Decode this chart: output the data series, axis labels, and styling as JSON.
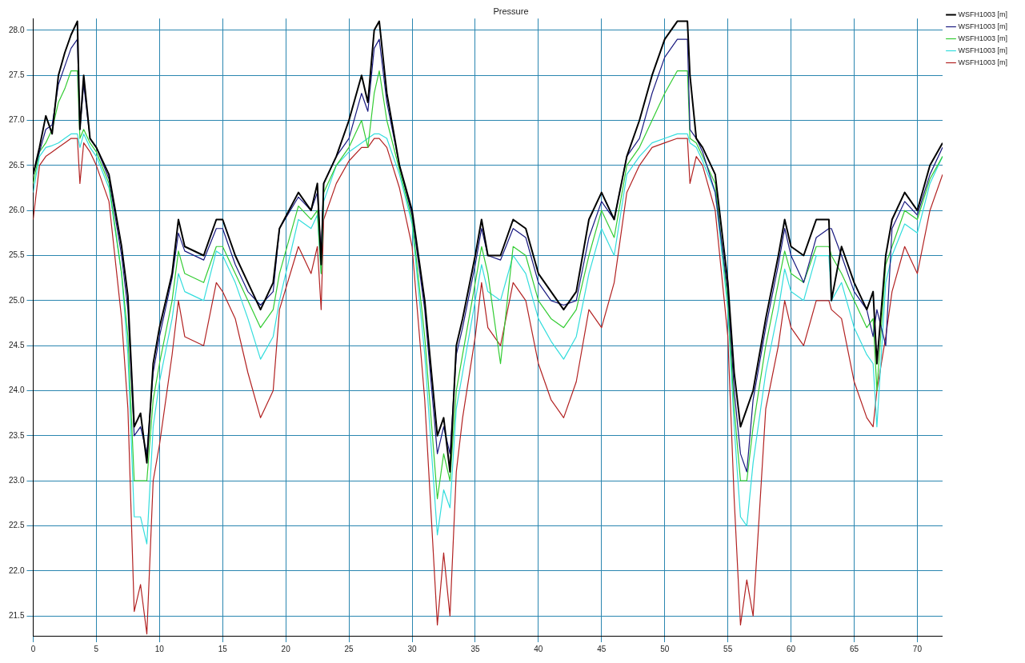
{
  "chart_data": {
    "type": "line",
    "title": "Pressure",
    "xlim": [
      0,
      72
    ],
    "ylim": [
      21.28,
      28.13
    ],
    "xticks": [
      0,
      5,
      10,
      15,
      20,
      25,
      30,
      35,
      40,
      45,
      50,
      55,
      60,
      65,
      70
    ],
    "yticks": [
      21.5,
      {
        "value": 22,
        "label": "22.0"
      },
      22.5,
      {
        "value": 23,
        "label": "23.0"
      },
      23.5,
      {
        "value": 24,
        "label": "24.0"
      },
      24.5,
      {
        "value": 25,
        "label": "25.0"
      },
      25.5,
      {
        "value": 26,
        "label": "26.0"
      },
      26.5,
      {
        "value": 27,
        "label": "27.0"
      },
      27.5,
      {
        "value": 28,
        "label": "28.0"
      }
    ],
    "grid": true,
    "legend": "top right",
    "x": [
      0,
      0.5,
      1,
      1.5,
      2,
      2.5,
      3,
      3.5,
      3.7,
      4,
      4.5,
      5,
      6,
      7,
      7.5,
      8,
      8.5,
      9,
      9.5,
      10,
      11,
      11.5,
      12,
      13.5,
      14.5,
      15,
      16,
      17,
      18,
      19,
      19.5,
      21,
      22,
      22.5,
      22.8,
      23,
      24,
      25,
      26,
      26.5,
      27,
      27.4,
      28,
      29,
      30,
      31,
      32,
      32.5,
      33,
      33.5,
      34,
      35,
      35.5,
      36,
      37,
      38,
      39,
      40,
      41,
      42,
      43,
      44,
      45,
      46,
      47,
      48,
      49,
      50,
      51,
      51.8,
      52,
      52.5,
      53,
      54,
      55,
      55.5,
      56,
      56.5,
      57,
      58,
      59,
      59.5,
      60,
      61,
      62,
      63,
      63.2,
      64,
      65,
      66,
      66.5,
      66.8,
      67.5,
      68,
      69,
      70,
      71,
      72
    ],
    "series": [
      {
        "name": "WSFH1003 [m]",
        "color": "#000000",
        "values": [
          26.4,
          26.7,
          27.05,
          26.85,
          27.5,
          27.75,
          27.95,
          28.1,
          26.9,
          27.5,
          26.8,
          26.7,
          26.4,
          25.6,
          25.05,
          23.6,
          23.75,
          23.2,
          24.3,
          24.7,
          25.3,
          25.9,
          25.6,
          25.5,
          25.9,
          25.9,
          25.5,
          25.2,
          24.9,
          25.2,
          25.8,
          26.2,
          26.0,
          26.3,
          25.4,
          26.3,
          26.6,
          27.0,
          27.5,
          27.2,
          28.0,
          28.1,
          27.3,
          26.5,
          26.0,
          25.0,
          23.5,
          23.7,
          23.1,
          24.5,
          24.8,
          25.5,
          25.9,
          25.5,
          25.5,
          25.9,
          25.8,
          25.3,
          25.1,
          24.9,
          25.1,
          25.9,
          26.2,
          25.9,
          26.6,
          27.0,
          27.5,
          27.9,
          28.1,
          28.1,
          27.5,
          26.8,
          26.7,
          26.4,
          25.2,
          24.2,
          23.6,
          23.8,
          24.0,
          24.8,
          25.5,
          25.9,
          25.6,
          25.5,
          25.9,
          25.9,
          25.0,
          25.6,
          25.2,
          24.9,
          25.1,
          24.3,
          25.5,
          25.9,
          26.2,
          26.0,
          26.5,
          26.75
        ]
      },
      {
        "name": "WSFH1003 [m]",
        "color": "#1a1a80",
        "values": [
          26.4,
          26.65,
          26.9,
          26.95,
          27.4,
          27.6,
          27.8,
          27.9,
          26.9,
          27.4,
          26.8,
          26.7,
          26.35,
          25.5,
          24.9,
          23.5,
          23.6,
          23.3,
          24.2,
          24.6,
          25.25,
          25.75,
          25.55,
          25.45,
          25.8,
          25.8,
          25.4,
          25.1,
          24.95,
          25.1,
          25.8,
          26.15,
          26.0,
          26.2,
          25.5,
          26.3,
          26.6,
          26.8,
          27.3,
          27.1,
          27.8,
          27.9,
          27.2,
          26.5,
          25.95,
          24.9,
          23.3,
          23.6,
          23.3,
          24.4,
          24.7,
          25.4,
          25.8,
          25.5,
          25.45,
          25.8,
          25.7,
          25.2,
          25.0,
          24.95,
          25.0,
          25.7,
          26.1,
          25.9,
          26.6,
          26.8,
          27.3,
          27.7,
          27.9,
          27.9,
          26.9,
          26.8,
          26.65,
          26.2,
          25.1,
          24.0,
          23.3,
          23.1,
          23.9,
          24.7,
          25.4,
          25.8,
          25.5,
          25.2,
          25.7,
          25.8,
          25.8,
          25.5,
          25.1,
          24.9,
          24.6,
          24.9,
          24.5,
          25.8,
          26.1,
          25.95,
          26.4,
          26.7
        ]
      },
      {
        "name": "WSFH1003 [m]",
        "color": "#33cc33",
        "values": [
          26.3,
          26.65,
          26.75,
          26.9,
          27.2,
          27.35,
          27.55,
          27.55,
          26.8,
          26.9,
          26.75,
          26.65,
          26.3,
          25.3,
          24.6,
          23.0,
          23.0,
          23.0,
          23.9,
          24.3,
          25.0,
          25.55,
          25.3,
          25.2,
          25.6,
          25.6,
          25.3,
          25.0,
          24.7,
          24.9,
          25.3,
          26.05,
          25.9,
          26.0,
          25.3,
          26.2,
          26.5,
          26.7,
          27.0,
          26.7,
          27.3,
          27.55,
          27.0,
          26.45,
          25.9,
          24.6,
          22.8,
          23.3,
          23.0,
          24.0,
          24.4,
          25.2,
          25.6,
          25.3,
          24.3,
          25.6,
          25.5,
          25.0,
          24.8,
          24.7,
          24.9,
          25.5,
          26.0,
          25.7,
          26.5,
          26.7,
          27.0,
          27.3,
          27.55,
          27.55,
          26.8,
          26.75,
          26.6,
          26.3,
          25.0,
          23.8,
          23.0,
          23.0,
          23.6,
          24.5,
          25.2,
          25.55,
          25.3,
          25.2,
          25.6,
          25.6,
          25.5,
          25.3,
          25.0,
          24.7,
          24.8,
          24.0,
          25.4,
          25.6,
          26.0,
          25.9,
          26.35,
          26.6
        ]
      },
      {
        "name": "WSFH1003 [m]",
        "color": "#33dddd",
        "values": [
          26.2,
          26.6,
          26.7,
          26.72,
          26.75,
          26.8,
          26.85,
          26.85,
          26.7,
          26.85,
          26.7,
          26.6,
          26.25,
          25.3,
          24.4,
          22.6,
          22.6,
          22.3,
          23.6,
          24.1,
          24.8,
          25.3,
          25.1,
          25.0,
          25.55,
          25.5,
          25.2,
          24.8,
          24.35,
          24.6,
          25.0,
          25.9,
          25.8,
          25.95,
          25.3,
          26.1,
          26.5,
          26.65,
          26.75,
          26.8,
          26.85,
          26.85,
          26.8,
          26.4,
          25.85,
          24.4,
          22.4,
          22.9,
          22.7,
          23.8,
          24.2,
          25.0,
          25.4,
          25.1,
          25.0,
          25.5,
          25.3,
          24.8,
          24.55,
          24.35,
          24.6,
          25.3,
          25.8,
          25.5,
          26.4,
          26.6,
          26.75,
          26.8,
          26.85,
          26.85,
          26.75,
          26.7,
          26.55,
          26.2,
          24.9,
          23.6,
          22.6,
          22.5,
          23.2,
          24.2,
          24.9,
          25.35,
          25.1,
          25.0,
          25.5,
          25.5,
          25.0,
          25.2,
          24.7,
          24.4,
          24.3,
          23.6,
          25.2,
          25.5,
          25.85,
          25.75,
          26.3,
          26.6
        ]
      },
      {
        "name": "WSFH1003 [m]",
        "color": "#b22222",
        "values": [
          25.9,
          26.5,
          26.6,
          26.65,
          26.7,
          26.75,
          26.8,
          26.8,
          26.3,
          26.75,
          26.65,
          26.5,
          26.1,
          24.8,
          23.8,
          21.55,
          21.85,
          21.3,
          23.0,
          23.4,
          24.4,
          25.0,
          24.6,
          24.5,
          25.2,
          25.1,
          24.8,
          24.2,
          23.7,
          24.0,
          24.9,
          25.6,
          25.3,
          25.6,
          24.9,
          25.9,
          26.3,
          26.55,
          26.7,
          26.7,
          26.8,
          26.8,
          26.7,
          26.25,
          25.6,
          23.9,
          21.4,
          22.2,
          21.5,
          23.1,
          23.7,
          24.6,
          25.2,
          24.7,
          24.5,
          25.2,
          25.0,
          24.3,
          23.9,
          23.7,
          24.1,
          24.9,
          24.7,
          25.2,
          26.2,
          26.5,
          26.7,
          26.75,
          26.8,
          26.8,
          26.3,
          26.6,
          26.5,
          26.0,
          24.6,
          22.8,
          21.4,
          21.9,
          21.5,
          23.8,
          24.5,
          25.0,
          24.7,
          24.5,
          25.0,
          25.0,
          24.9,
          24.8,
          24.1,
          23.7,
          23.6,
          24.0,
          24.6,
          25.1,
          25.6,
          25.3,
          26.0,
          26.4
        ]
      }
    ]
  }
}
